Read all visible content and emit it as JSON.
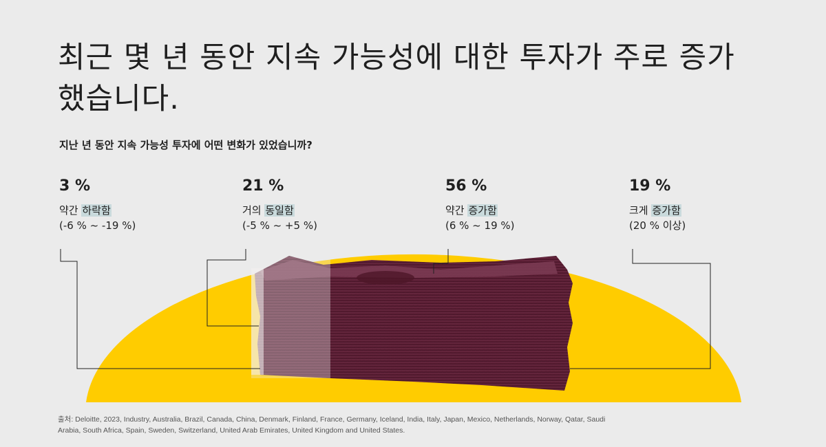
{
  "title": "최근 몇 년 동안 지속 가능성에 대한 투자가 주로 증가했습니다.",
  "subtitle": "지난 년 동안 지속 가능성 투자에 어떤 변화가 있었습니까?",
  "colors": {
    "background": "#ebebeb",
    "arc": "#ffcc00",
    "money": "#5c1f35",
    "highlight": "#c9dadc",
    "line": "#222222"
  },
  "chart_data": {
    "type": "bar",
    "categories": [
      "약간 하락함",
      "거의 동일함",
      "약간 증가함",
      "크게 증가함"
    ],
    "values": [
      3,
      21,
      56,
      19
    ],
    "unit": "%",
    "ranges": [
      "(-6 % ~ -19 %)",
      "(-5 % ~ +5 %)",
      "(6 % ~ 19 %)",
      "(20 % 이상)"
    ],
    "title": "지난 년 동안 지속 가능성 투자에 어떤 변화가 있었습니까?"
  },
  "stats": [
    {
      "pct": "3 %",
      "prefix": "약간 ",
      "highlight": "하락함",
      "range": "(-6 % ~ -19 %)"
    },
    {
      "pct": "21 %",
      "prefix": "거의 ",
      "highlight": "동일함",
      "range": "(-5 % ~ +5 %)"
    },
    {
      "pct": "56 %",
      "prefix": "약간 ",
      "highlight": "증가함",
      "range": "(6 % ~ 19 %)"
    },
    {
      "pct": "19 %",
      "prefix": "크게 ",
      "highlight": "증가함",
      "range": "(20 % 이상)"
    }
  ],
  "source": {
    "label": "출처",
    "text": ": Deloitte, 2023, Industry, Australia, Brazil, Canada, China, Denmark, Finland, France, Germany, Iceland, India, Italy, Japan, Mexico, Netherlands, Norway, Qatar, Saudi Arabia, South Africa, Spain, Sweden, Switzerland, United Arab Emirates, United Kingdom and United States."
  }
}
